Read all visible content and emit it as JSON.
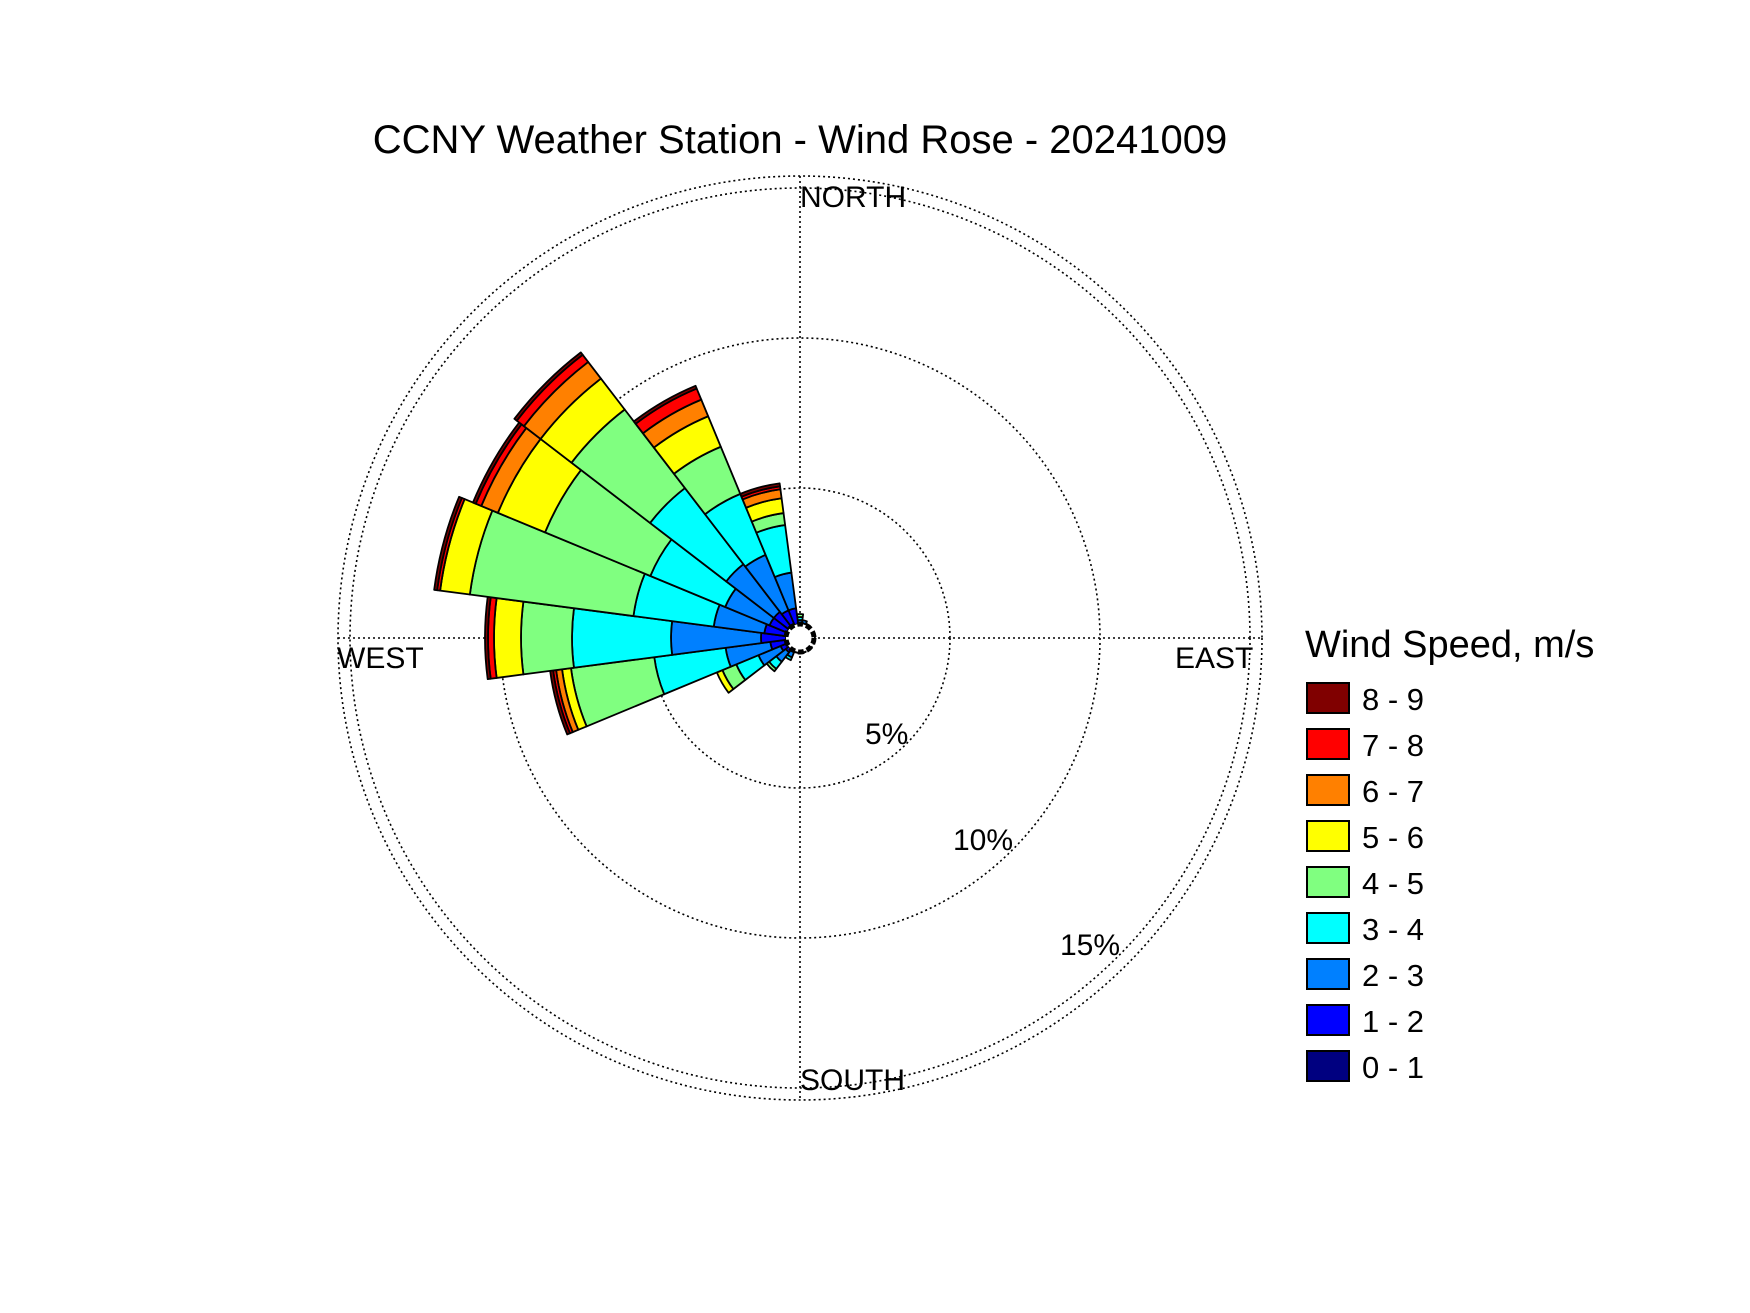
{
  "chart_data": {
    "type": "wind_rose",
    "title": "CCNY Weather Station - Wind Rose - 20241009",
    "directions_labels": {
      "north": "NORTH",
      "east": "EAST",
      "south": "SOUTH",
      "west": "WEST"
    },
    "radial_axis": {
      "unit": "%",
      "ticks": [
        5,
        10,
        15
      ],
      "tick_labels": [
        "5%",
        "10%",
        "15%"
      ],
      "max": 15.5
    },
    "grid": true,
    "legend": {
      "title": "Wind Speed, m/s",
      "placement": "right",
      "bins": [
        {
          "label": "8 - 9",
          "color": "#800000"
        },
        {
          "label": "7 - 8",
          "color": "#ff0000"
        },
        {
          "label": "6 - 7",
          "color": "#ff8000"
        },
        {
          "label": "5 - 6",
          "color": "#ffff00"
        },
        {
          "label": "4 - 5",
          "color": "#80ff80"
        },
        {
          "label": "3 - 4",
          "color": "#00ffff"
        },
        {
          "label": "2 - 3",
          "color": "#0080ff"
        },
        {
          "label": "1 - 2",
          "color": "#0000ff"
        },
        {
          "label": "0 - 1",
          "color": "#000080"
        }
      ]
    },
    "bin_order_inner_to_outer": [
      "0 - 1",
      "1 - 2",
      "2 - 3",
      "3 - 4",
      "4 - 5",
      "5 - 6",
      "6 - 7",
      "7 - 8",
      "8 - 9"
    ],
    "sectors": [
      {
        "direction_deg": 0,
        "cumulative_pct": [
          0.3,
          0.5,
          0.6,
          0.7,
          0.8,
          0.8,
          0.8,
          0.8,
          0.8
        ]
      },
      {
        "direction_deg": 15,
        "cumulative_pct": [
          0.3,
          0.5,
          0.6,
          0.6,
          0.6,
          0.6,
          0.6,
          0.6,
          0.6
        ]
      },
      {
        "direction_deg": 30,
        "cumulative_pct": [
          0.3,
          0.4,
          0.5,
          0.5,
          0.5,
          0.5,
          0.5,
          0.5,
          0.5
        ]
      },
      {
        "direction_deg": 45,
        "cumulative_pct": [
          0.3,
          0.4,
          0.4,
          0.4,
          0.4,
          0.4,
          0.4,
          0.4,
          0.4
        ]
      },
      {
        "direction_deg": 60,
        "cumulative_pct": [
          0.3,
          0.4,
          0.4,
          0.4,
          0.4,
          0.4,
          0.4,
          0.4,
          0.4
        ]
      },
      {
        "direction_deg": 75,
        "cumulative_pct": [
          0.3,
          0.4,
          0.5,
          0.5,
          0.5,
          0.5,
          0.5,
          0.5,
          0.5
        ]
      },
      {
        "direction_deg": 90,
        "cumulative_pct": [
          0.3,
          0.4,
          0.5,
          0.5,
          0.5,
          0.5,
          0.5,
          0.5,
          0.5
        ]
      },
      {
        "direction_deg": 105,
        "cumulative_pct": [
          0.3,
          0.4,
          0.5,
          0.5,
          0.5,
          0.5,
          0.5,
          0.5,
          0.5
        ]
      },
      {
        "direction_deg": 120,
        "cumulative_pct": [
          0.3,
          0.4,
          0.4,
          0.4,
          0.4,
          0.4,
          0.4,
          0.4,
          0.4
        ]
      },
      {
        "direction_deg": 135,
        "cumulative_pct": [
          0.3,
          0.4,
          0.5,
          0.5,
          0.5,
          0.5,
          0.5,
          0.5,
          0.5
        ]
      },
      {
        "direction_deg": 150,
        "cumulative_pct": [
          0.3,
          0.4,
          0.4,
          0.4,
          0.4,
          0.4,
          0.4,
          0.4,
          0.4
        ]
      },
      {
        "direction_deg": 165,
        "cumulative_pct": [
          0.3,
          0.4,
          0.5,
          0.5,
          0.5,
          0.5,
          0.5,
          0.5,
          0.5
        ]
      },
      {
        "direction_deg": 180,
        "cumulative_pct": [
          0.3,
          0.4,
          0.5,
          0.5,
          0.5,
          0.5,
          0.5,
          0.5,
          0.5
        ]
      },
      {
        "direction_deg": 195,
        "cumulative_pct": [
          0.3,
          0.4,
          0.5,
          0.5,
          0.5,
          0.5,
          0.5,
          0.5,
          0.5
        ]
      },
      {
        "direction_deg": 210,
        "cumulative_pct": [
          0.3,
          0.5,
          0.7,
          0.8,
          0.8,
          0.8,
          0.8,
          0.8,
          0.8
        ]
      },
      {
        "direction_deg": 225,
        "cumulative_pct": [
          0.3,
          0.6,
          1.0,
          1.3,
          1.4,
          1.4,
          1.4,
          1.4,
          1.4
        ]
      },
      {
        "direction_deg": 240,
        "cumulative_pct": [
          0.3,
          0.7,
          1.5,
          2.3,
          2.8,
          3.0,
          3.0,
          3.0,
          3.0
        ]
      },
      {
        "direction_deg": 255,
        "cumulative_pct": [
          0.3,
          1.0,
          2.5,
          4.9,
          7.7,
          8.0,
          8.2,
          8.3,
          8.4
        ]
      },
      {
        "direction_deg": 270,
        "cumulative_pct": [
          0.3,
          1.3,
          4.3,
          7.6,
          9.3,
          10.2,
          10.2,
          10.4,
          10.5
        ]
      },
      {
        "direction_deg": 285,
        "cumulative_pct": [
          0.3,
          1.2,
          2.9,
          5.6,
          11.1,
          12.1,
          12.1,
          12.2,
          12.3
        ]
      },
      {
        "direction_deg": 300,
        "cumulative_pct": [
          0.3,
          1.1,
          2.7,
          5.4,
          9.2,
          10.9,
          11.5,
          11.7,
          11.8
        ]
      },
      {
        "direction_deg": 315,
        "cumulative_pct": [
          0.3,
          1.1,
          3.1,
          6.3,
          9.6,
          10.9,
          11.6,
          11.9,
          12.0
        ]
      },
      {
        "direction_deg": 330,
        "cumulative_pct": [
          0.3,
          1.0,
          3.0,
          5.2,
          6.9,
          8.0,
          8.6,
          9.0,
          9.1
        ]
      },
      {
        "direction_deg": 345,
        "cumulative_pct": [
          0.3,
          1.0,
          2.2,
          3.8,
          4.2,
          4.7,
          5.0,
          5.1,
          5.2
        ]
      }
    ],
    "sector_width_deg": 15
  }
}
